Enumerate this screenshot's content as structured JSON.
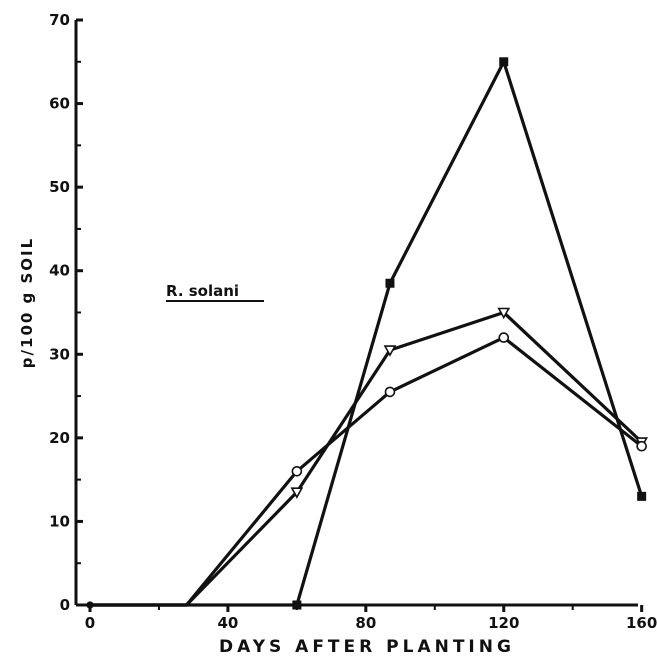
{
  "chart_data": {
    "type": "line",
    "xlabel": "DAYS AFTER PLANTING",
    "ylabel": "p/100 g SOIL",
    "annotation": "R. solani",
    "xlim": [
      0,
      163
    ],
    "ylim": [
      0,
      70
    ],
    "xticks": [
      0,
      40,
      80,
      120,
      160
    ],
    "yticks": [
      0,
      10,
      20,
      30,
      40,
      50,
      60,
      70
    ],
    "grid": false,
    "series": [
      {
        "marker": "square-filled",
        "x": [
          0,
          28,
          60,
          87,
          120,
          160
        ],
        "y": [
          0,
          0,
          0,
          38.5,
          65,
          13
        ]
      },
      {
        "marker": "triangle-down-open",
        "x": [
          0,
          28,
          60,
          87,
          120,
          160
        ],
        "y": [
          0,
          0,
          13.5,
          30.5,
          35,
          19.5
        ]
      },
      {
        "marker": "circle-open",
        "x": [
          0,
          28,
          60,
          87,
          120,
          160
        ],
        "y": [
          0,
          0,
          16,
          25.5,
          32,
          19
        ]
      }
    ]
  }
}
